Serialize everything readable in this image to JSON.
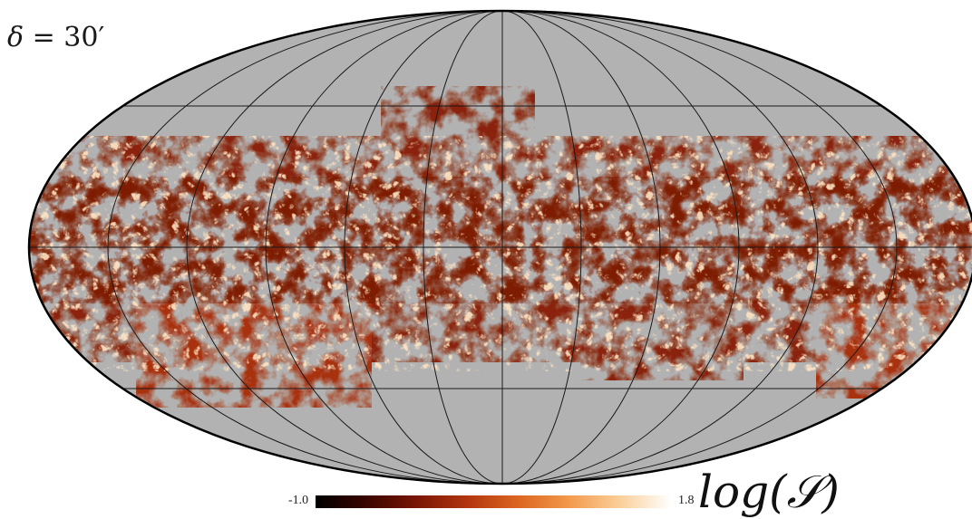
{
  "panel_label": {
    "symbol": "δ",
    "equals": " = ",
    "value": "30′"
  },
  "colorbar": {
    "title_prefix": "log(",
    "title_symbol": "𝒮",
    "title_suffix": ")",
    "min_label": "-1.0",
    "max_label": "1.8",
    "colormap": [
      "#000000",
      "#3a0500",
      "#7a1605",
      "#b3360f",
      "#dc6620",
      "#f39a4c",
      "#fbcf9a",
      "#ffffff"
    ]
  },
  "map": {
    "projection": "mollweide",
    "graticule": true,
    "masked_color": "#b2b2b2",
    "graticule_color": "#1a1a1a"
  }
}
